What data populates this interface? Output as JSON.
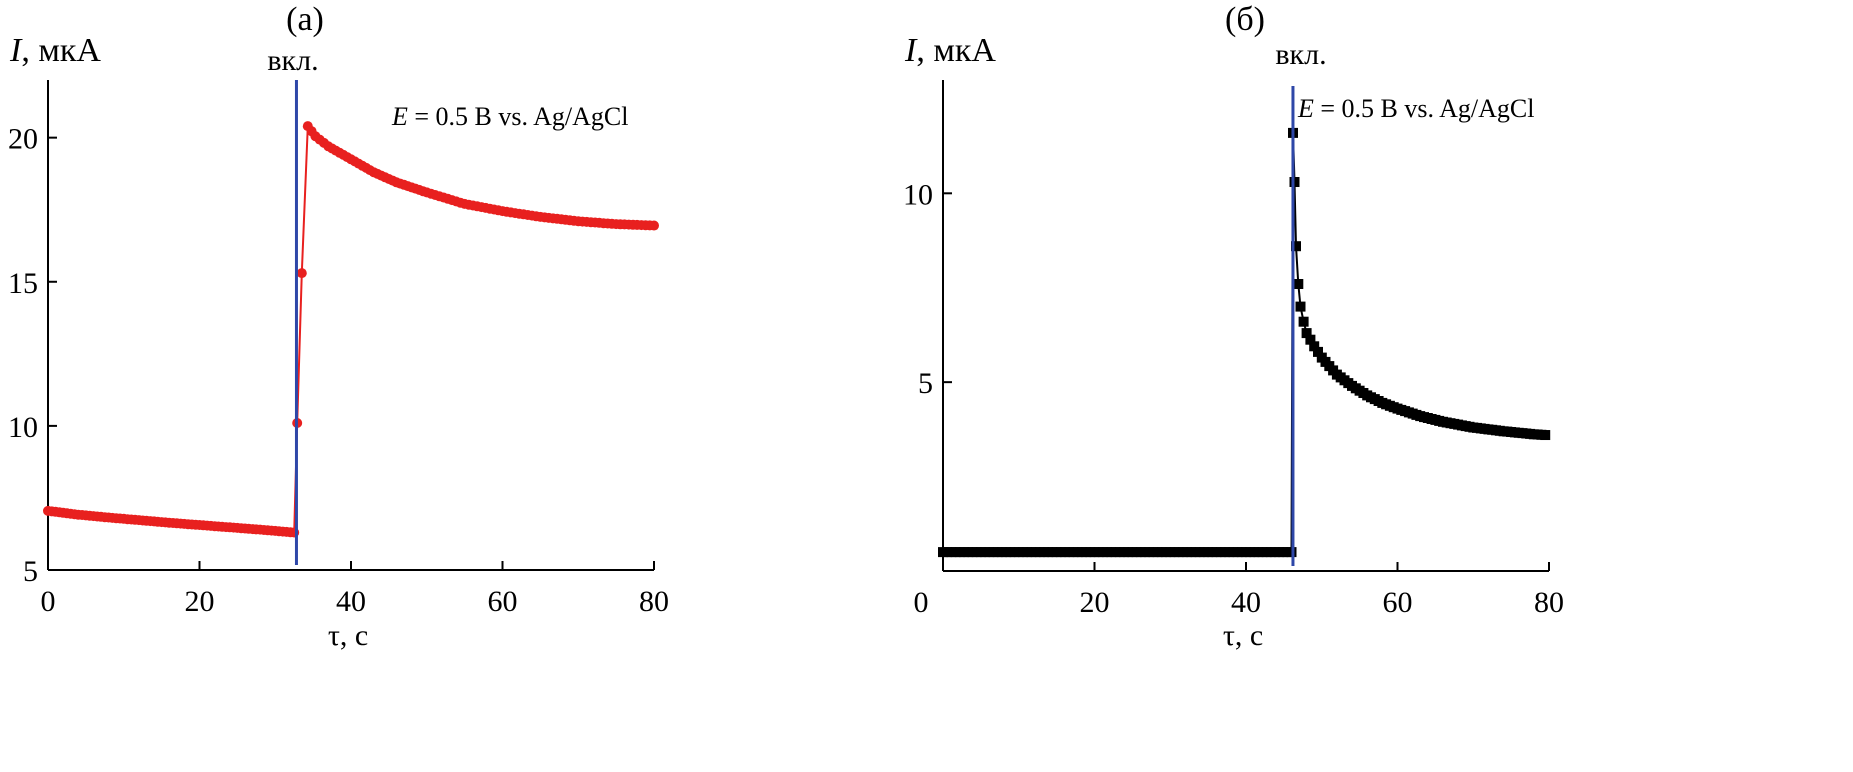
{
  "chart_data": [
    {
      "type": "scatter",
      "panel_label": "(а)",
      "ylabel_italic": "I",
      "ylabel_rest": ", мкА",
      "xlabel": "τ, с",
      "annotation_italic": "E",
      "annotation_rest": " = 0.5 В vs. Ag/AgCl",
      "switch_label": "вкл.",
      "switch_x": 32.8,
      "xlim": [
        0,
        80
      ],
      "ylim": [
        5,
        22
      ],
      "xticks": [
        0,
        20,
        40,
        60,
        80
      ],
      "yticks": [
        5,
        10,
        15,
        20
      ],
      "colors": {
        "series": "#e8201f",
        "switch_line": "#2e47a8"
      },
      "marker": "circle",
      "series": [
        {
          "x": [
            0,
            4,
            8,
            12,
            16,
            20,
            24,
            28,
            32.5,
            32.9,
            33.5,
            34.3,
            35.3,
            37,
            40,
            43,
            46,
            50,
            55,
            60,
            65,
            70,
            75,
            80
          ],
          "y": [
            7.05,
            6.92,
            6.82,
            6.73,
            6.64,
            6.56,
            6.48,
            6.4,
            6.3,
            10.1,
            15.3,
            20.4,
            20.05,
            19.7,
            19.25,
            18.8,
            18.45,
            18.1,
            17.7,
            17.45,
            17.25,
            17.1,
            17.0,
            16.95
          ]
        }
      ]
    },
    {
      "type": "scatter",
      "panel_label": "(б)",
      "ylabel_italic": "I",
      "ylabel_rest": ", мкА",
      "xlabel": "τ, с",
      "annotation_italic": "E",
      "annotation_rest": " = 0.5 В vs. Ag/AgCl",
      "switch_label": "вкл.",
      "switch_x": 46.2,
      "xlim": [
        0,
        80
      ],
      "ylim": [
        0,
        13
      ],
      "xticks": [
        0,
        20,
        40,
        60,
        80
      ],
      "yticks": [
        5,
        10
      ],
      "x_zero_label_outside": true,
      "colors": {
        "series": "#000000",
        "switch_line": "#2e47a8"
      },
      "marker": "square",
      "series": [
        {
          "x": [
            0,
            5,
            10,
            15,
            20,
            25,
            30,
            35,
            40,
            46,
            46.2,
            46.4,
            46.6,
            46.9,
            47.2,
            47.6,
            48,
            49,
            50,
            52,
            54,
            56,
            58,
            60,
            63,
            66,
            70,
            74,
            78,
            79.5
          ],
          "y": [
            0.5,
            0.5,
            0.5,
            0.5,
            0.5,
            0.5,
            0.5,
            0.5,
            0.5,
            0.5,
            11.6,
            10.3,
            8.6,
            7.6,
            7.0,
            6.6,
            6.3,
            5.95,
            5.65,
            5.2,
            4.9,
            4.65,
            4.45,
            4.3,
            4.1,
            3.95,
            3.8,
            3.7,
            3.62,
            3.6
          ]
        }
      ]
    }
  ]
}
